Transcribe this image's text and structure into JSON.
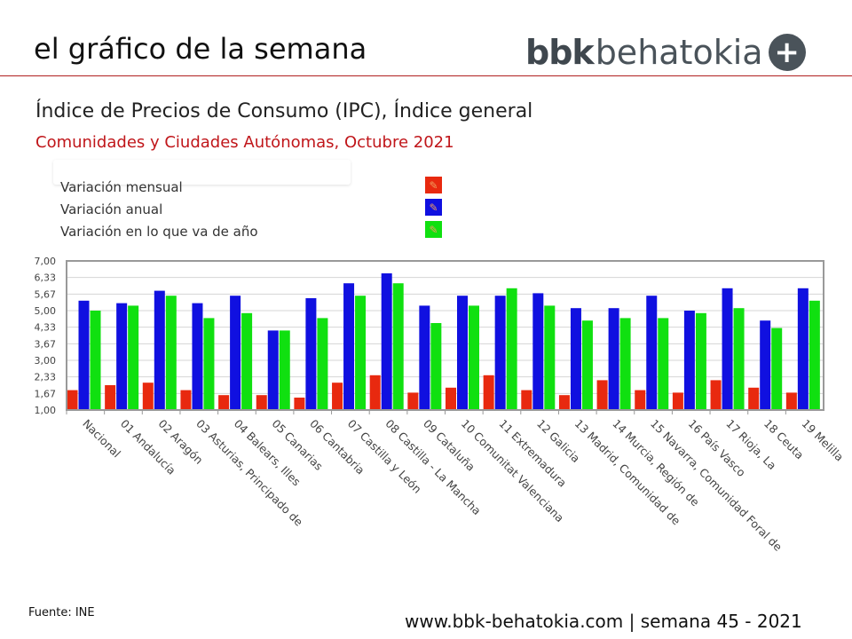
{
  "header": {
    "title": "el gráfico de la semana",
    "logo_bold": "bbk",
    "logo_light": "behatokia",
    "logo_icon": "plus-circle-icon"
  },
  "title": "Índice de Precios de Consumo (IPC), Índice general",
  "subtitle": "Comunidades  y Ciudades  Autónomas, Octubre 2021",
  "legend": [
    {
      "label": "Variación mensual",
      "color": "#e8290f",
      "icon": "pencil-icon"
    },
    {
      "label": "Variación anual",
      "color": "#1010e0",
      "icon": "pencil-icon"
    },
    {
      "label": "Variación en lo que va de año",
      "color": "#10e010",
      "icon": "pencil-icon"
    }
  ],
  "chart_data": {
    "type": "bar",
    "title": "Índice de Precios de Consumo (IPC), Índice general",
    "ylim": [
      1.0,
      7.0
    ],
    "yticks": [
      "1,00",
      "1,67",
      "2,33",
      "3,00",
      "3,67",
      "4,33",
      "5,00",
      "5,67",
      "6,33",
      "7,00"
    ],
    "grid": true,
    "categories": [
      "Nacional",
      "01 Andalucía",
      "02 Aragón",
      "03 Asturias, Principado de",
      "04 Balears, Illes",
      "05 Canarias",
      "06 Cantabria",
      "07 Castilla y León",
      "08 Castilla - La Mancha",
      "09 Cataluña",
      "10 Comunitat Valenciana",
      "11 Extremadura",
      "12 Galicia",
      "13 Madrid, Comunidad de",
      "14 Murcia, Región de",
      "15 Navarra, Comunidad Foral de",
      "16 País Vasco",
      "17 Rioja, La",
      "18 Ceuta",
      "19 Melilla"
    ],
    "series": [
      {
        "name": "Variación mensual",
        "color": "#e8290f",
        "values": [
          1.8,
          2.0,
          2.1,
          1.8,
          1.6,
          1.6,
          1.5,
          2.1,
          2.4,
          1.7,
          1.9,
          2.4,
          1.8,
          1.6,
          2.2,
          1.8,
          1.7,
          2.2,
          1.9,
          1.7
        ]
      },
      {
        "name": "Variación anual",
        "color": "#1010e0",
        "values": [
          5.4,
          5.3,
          5.8,
          5.3,
          5.6,
          4.2,
          5.5,
          6.1,
          6.5,
          5.2,
          5.6,
          5.6,
          5.7,
          5.1,
          5.1,
          5.6,
          5.0,
          5.9,
          4.6,
          5.9
        ]
      },
      {
        "name": "Variación en lo que va de año",
        "color": "#10e010",
        "values": [
          5.0,
          5.2,
          5.6,
          4.7,
          4.9,
          4.2,
          4.7,
          5.6,
          6.1,
          4.5,
          5.2,
          5.9,
          5.2,
          4.6,
          4.7,
          4.7,
          4.9,
          5.1,
          4.3,
          5.4
        ]
      }
    ]
  },
  "source": "Fuente: INE",
  "footer": "www.bbk-behatokia.com | semana 45 - 2021"
}
